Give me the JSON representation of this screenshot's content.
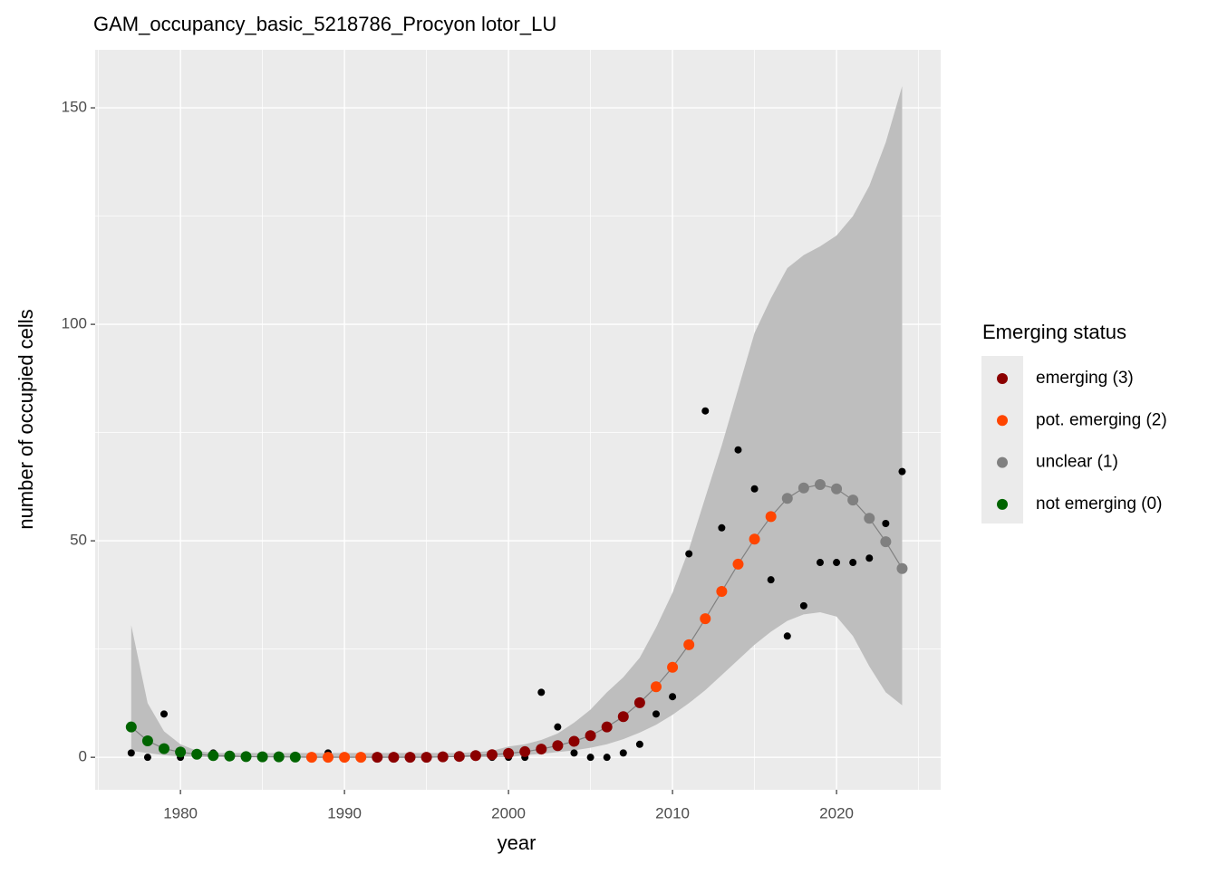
{
  "chart_data": {
    "type": "scatter",
    "title": "GAM_occupancy_basic_5218786_Procyon lotor_LU",
    "x_label": "year",
    "y_label": "number of occupied cells",
    "x": [
      1977,
      1978,
      1979,
      1980,
      1981,
      1982,
      1983,
      1984,
      1985,
      1986,
      1987,
      1988,
      1989,
      1990,
      1991,
      1992,
      1993,
      1994,
      1995,
      1996,
      1997,
      1998,
      1999,
      2000,
      2001,
      2002,
      2003,
      2004,
      2005,
      2006,
      2007,
      2008,
      2009,
      2010,
      2011,
      2012,
      2013,
      2014,
      2015,
      2016,
      2017,
      2018,
      2019,
      2020,
      2021,
      2022,
      2023,
      2024
    ],
    "observed": [
      1,
      0,
      10,
      0,
      1,
      1,
      0,
      0,
      0,
      0,
      0,
      0,
      1,
      0,
      0,
      0,
      0,
      0,
      0,
      0,
      0,
      0,
      0,
      0,
      0,
      15,
      7,
      1,
      0,
      0,
      1,
      3,
      10,
      14,
      47,
      80,
      53,
      71,
      62,
      41,
      28,
      35,
      45,
      45,
      45,
      46,
      54,
      66
    ],
    "fitted": [
      7,
      3.8,
      2,
      1.2,
      0.7,
      0.4,
      0.3,
      0.15,
      0.1,
      0.1,
      0.05,
      0,
      0,
      0,
      0,
      0,
      0,
      0,
      0,
      0.1,
      0.2,
      0.4,
      0.6,
      0.9,
      1.3,
      1.9,
      2.7,
      3.7,
      5,
      7,
      9.4,
      12.6,
      16.3,
      20.8,
      26,
      32,
      38.3,
      44.6,
      50.4,
      55.6,
      59.8,
      62.2,
      63,
      62,
      59.4,
      55.2,
      49.8,
      43.6
    ],
    "ci_lower": [
      1.5,
      1,
      0.5,
      0.2,
      0.1,
      0,
      0,
      0,
      0,
      0,
      0,
      0,
      0,
      0,
      0,
      0,
      0,
      0,
      0,
      0,
      0,
      0,
      0,
      0,
      0.5,
      0.8,
      1.2,
      1.6,
      2.2,
      3,
      4.2,
      5.7,
      7.5,
      9.8,
      12.5,
      15.5,
      19,
      22.5,
      26,
      29,
      31.5,
      33,
      33.5,
      32.5,
      28,
      21,
      15,
      12
    ],
    "ci_upper": [
      30.5,
      12.5,
      6,
      3,
      1.5,
      1,
      1,
      1,
      1,
      1,
      1,
      1,
      1,
      1,
      1,
      1,
      1,
      1,
      1,
      1,
      1,
      1.2,
      1.5,
      2.5,
      3,
      4,
      5.5,
      8,
      11,
      15,
      18.5,
      23,
      30,
      38,
      48,
      60,
      72,
      85,
      98,
      106,
      113,
      116,
      118,
      120.5,
      125,
      132,
      142,
      155
    ],
    "status": [
      0,
      0,
      0,
      0,
      0,
      0,
      0,
      0,
      0,
      0,
      0,
      2,
      2,
      2,
      2,
      3,
      3,
      3,
      3,
      3,
      3,
      3,
      3,
      3,
      3,
      3,
      3,
      3,
      3,
      3,
      3,
      3,
      2,
      2,
      2,
      2,
      2,
      2,
      2,
      2,
      1,
      1,
      1,
      1,
      1,
      1,
      1,
      1
    ],
    "legend": {
      "title": "Emerging status",
      "entries": [
        {
          "label": "emerging (3)",
          "code": 3,
          "color": "#8b0000"
        },
        {
          "label": "pot. emerging (2)",
          "code": 2,
          "color": "#ff4500"
        },
        {
          "label": "unclear (1)",
          "code": 1,
          "color": "#808080"
        },
        {
          "label": "not emerging (0)",
          "code": 0,
          "color": "#006400"
        }
      ]
    },
    "xlim": [
      1974.8,
      2026.35
    ],
    "ylim": [
      -7.5,
      163.4
    ],
    "xticks": [
      1980,
      1990,
      2000,
      2010,
      2020
    ],
    "yticks": [
      0,
      50,
      100,
      150
    ],
    "grid": true
  }
}
